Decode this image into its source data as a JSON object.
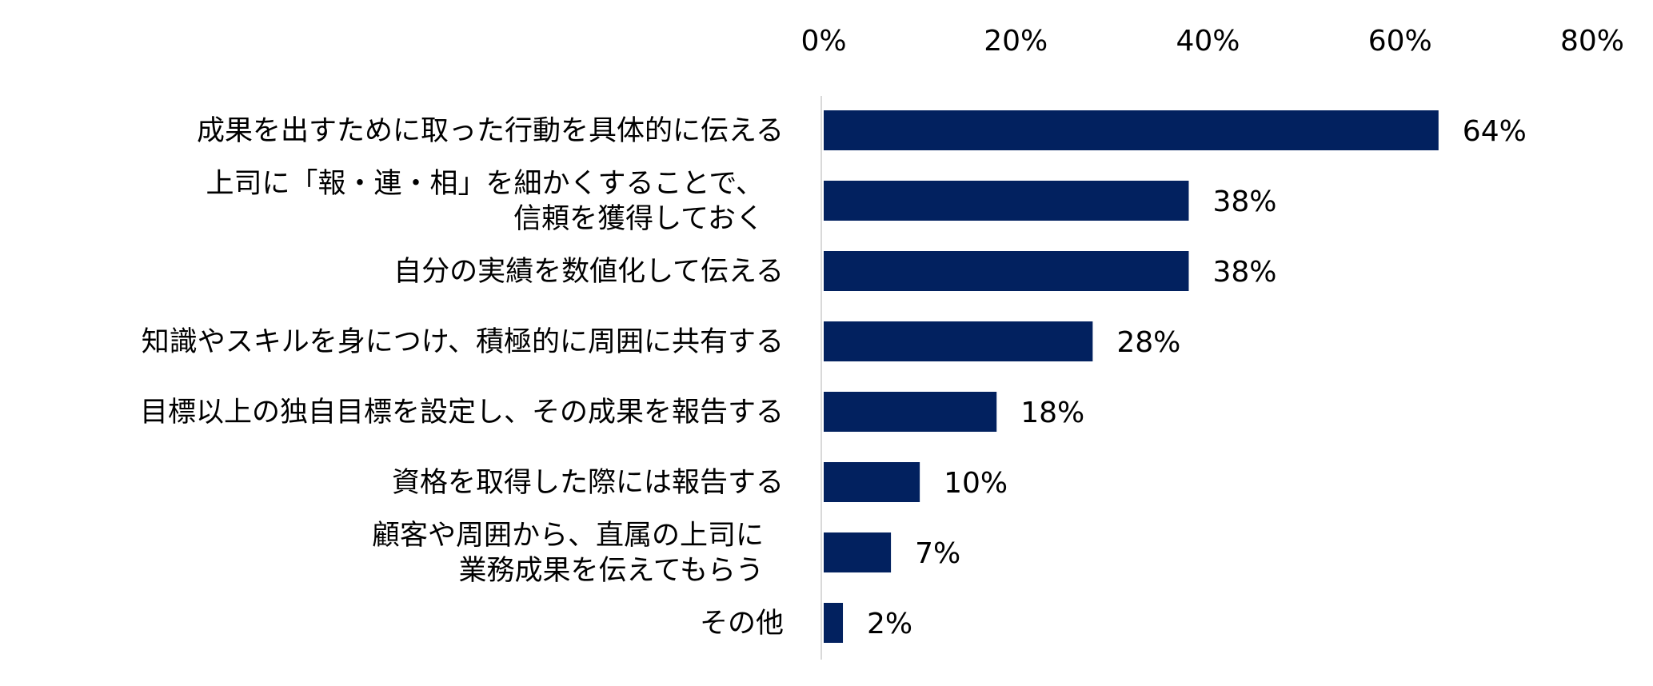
{
  "chart_data": {
    "type": "bar",
    "orientation": "horizontal",
    "categories": [
      [
        "成果を出すために取った行動を具体的に伝える"
      ],
      [
        "上司に「報・連・相」を細かくすることで、",
        "信頼を獲得しておく"
      ],
      [
        "自分の実績を数値化して伝える"
      ],
      [
        "知識やスキルを身につけ、積極的に周囲に共有する"
      ],
      [
        "目標以上の独自目標を設定し、その成果を報告する"
      ],
      [
        "資格を取得した際には報告する"
      ],
      [
        "顧客や周囲から、直属の上司に",
        "業務成果を伝えてもらう"
      ],
      [
        "その他"
      ]
    ],
    "values": [
      64,
      38,
      38,
      28,
      18,
      10,
      7,
      2
    ],
    "value_labels": [
      "64%",
      "38%",
      "38%",
      "28%",
      "18%",
      "10%",
      "7%",
      "2%"
    ],
    "xlim": [
      0,
      80
    ],
    "x_ticks": [
      0,
      20,
      40,
      60,
      80
    ],
    "x_tick_labels": [
      "0%",
      "20%",
      "40%",
      "60%",
      "80%"
    ],
    "x_axis_position": "top",
    "grid": false,
    "title": "",
    "xlabel": "",
    "ylabel": "",
    "bar_color": "#02215F",
    "axis_line_color": "#D9D9D9"
  }
}
